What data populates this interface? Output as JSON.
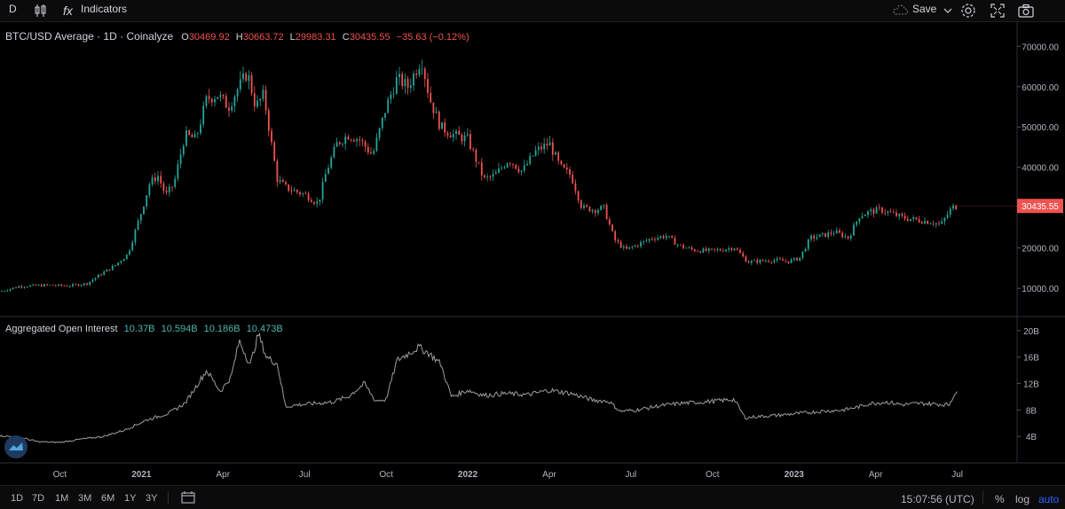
{
  "toolbar": {
    "interval": "D",
    "indicators_label": "Indicators",
    "save_label": "Save"
  },
  "price_legend": {
    "symbol": "BTC/USD Average · 1D · Coinalyze",
    "o_label": "O",
    "o_value": "30469.92",
    "h_label": "H",
    "h_value": "30663.72",
    "l_label": "L",
    "l_value": "29983.31",
    "c_label": "C",
    "c_value": "30435.55",
    "change": "−35.63 (−0.12%)"
  },
  "oi_legend": {
    "title": "Aggregated Open Interest",
    "v1": "10.37B",
    "v2": "10.594B",
    "v3": "10.186B",
    "v4": "10.473B"
  },
  "bottom_bar": {
    "ranges": [
      "1D",
      "7D",
      "1M",
      "3M",
      "6M",
      "1Y",
      "3Y"
    ],
    "time": "15:07:56 (UTC)",
    "percent": "%",
    "log": "log",
    "auto": "auto"
  },
  "colors": {
    "up": "#26a69a",
    "down": "#ef5350",
    "oi": "#9e9e9e",
    "accent": "#2962ff"
  },
  "chart_data": [
    {
      "type": "candlestick",
      "title": "BTC/USD Average · 1D · Coinalyze",
      "y_ticks": [
        "70000.00",
        "60000.00",
        "50000.00",
        "40000.00",
        "30000.00",
        "20000.00",
        "10000.00"
      ],
      "y_range": [
        3000,
        76000
      ],
      "last_price_label": "30435.55",
      "last_price": 30435.55,
      "x_ticks": [
        "Oct",
        "2021",
        "Apr",
        "Jul",
        "Oct",
        "2022",
        "Apr",
        "Jul",
        "Oct",
        "2023",
        "Apr",
        "Jul"
      ],
      "x_tick_months": [
        0,
        3,
        6,
        9,
        12,
        15,
        18,
        21,
        24,
        27,
        30,
        33
      ],
      "month_range": [
        -2.2,
        35.2
      ],
      "series_points": [
        [
          -2.2,
          9200
        ],
        [
          -1.5,
          10500
        ],
        [
          -0.5,
          10800
        ],
        [
          0.3,
          10600
        ],
        [
          1.0,
          11200
        ],
        [
          1.5,
          13500
        ],
        [
          2.0,
          15500
        ],
        [
          2.5,
          18500
        ],
        [
          3.0,
          29000
        ],
        [
          3.3,
          36000
        ],
        [
          3.6,
          38000
        ],
        [
          3.9,
          33000
        ],
        [
          4.2,
          36000
        ],
        [
          4.6,
          48000
        ],
        [
          5.0,
          47000
        ],
        [
          5.4,
          57000
        ],
        [
          5.8,
          58000
        ],
        [
          6.2,
          55000
        ],
        [
          6.5,
          59000
        ],
        [
          6.9,
          63500
        ],
        [
          7.2,
          55000
        ],
        [
          7.5,
          58000
        ],
        [
          7.8,
          45000
        ],
        [
          8.0,
          37000
        ],
        [
          8.3,
          35000
        ],
        [
          8.7,
          34000
        ],
        [
          9.1,
          33000
        ],
        [
          9.5,
          31000
        ],
        [
          9.8,
          39000
        ],
        [
          10.2,
          46000
        ],
        [
          10.6,
          48000
        ],
        [
          11.0,
          47000
        ],
        [
          11.5,
          43000
        ],
        [
          12.0,
          55000
        ],
        [
          12.4,
          62000
        ],
        [
          12.8,
          60000
        ],
        [
          13.3,
          67000
        ],
        [
          13.6,
          57000
        ],
        [
          14.0,
          50000
        ],
        [
          14.5,
          48000
        ],
        [
          15.0,
          47000
        ],
        [
          15.3,
          42000
        ],
        [
          15.6,
          37000
        ],
        [
          16.0,
          38000
        ],
        [
          16.5,
          42000
        ],
        [
          17.0,
          39000
        ],
        [
          17.5,
          44000
        ],
        [
          18.0,
          46000
        ],
        [
          18.4,
          40000
        ],
        [
          18.8,
          38000
        ],
        [
          19.2,
          30000
        ],
        [
          19.7,
          29500
        ],
        [
          20.0,
          30000
        ],
        [
          20.4,
          22000
        ],
        [
          20.8,
          19500
        ],
        [
          21.3,
          21000
        ],
        [
          21.8,
          22500
        ],
        [
          22.3,
          23000
        ],
        [
          22.8,
          20500
        ],
        [
          23.3,
          19500
        ],
        [
          23.8,
          19300
        ],
        [
          24.3,
          19500
        ],
        [
          24.8,
          20200
        ],
        [
          25.3,
          16500
        ],
        [
          25.8,
          16800
        ],
        [
          26.3,
          17000
        ],
        [
          26.8,
          16700
        ],
        [
          27.2,
          17500
        ],
        [
          27.6,
          22500
        ],
        [
          28.0,
          23000
        ],
        [
          28.5,
          24000
        ],
        [
          29.0,
          22500
        ],
        [
          29.4,
          28000
        ],
        [
          29.8,
          29000
        ],
        [
          30.2,
          29500
        ],
        [
          30.6,
          28500
        ],
        [
          31.0,
          27500
        ],
        [
          31.5,
          27000
        ],
        [
          32.0,
          26500
        ],
        [
          32.4,
          25800
        ],
        [
          32.8,
          30000
        ],
        [
          33.0,
          30435.55
        ]
      ]
    },
    {
      "type": "line",
      "title": "Aggregated Open Interest",
      "y_ticks": [
        "20B",
        "16B",
        "12B",
        "8B",
        "4B"
      ],
      "y_range": [
        0,
        22
      ],
      "units": "billion USD",
      "series_points": [
        [
          -2.2,
          4.1
        ],
        [
          -1.5,
          3.9
        ],
        [
          -0.8,
          3.2
        ],
        [
          0.0,
          3.1
        ],
        [
          0.8,
          3.6
        ],
        [
          1.6,
          4.0
        ],
        [
          2.4,
          5.0
        ],
        [
          3.2,
          6.5
        ],
        [
          4.0,
          7.5
        ],
        [
          4.6,
          9.0
        ],
        [
          5.0,
          11.5
        ],
        [
          5.4,
          14.0
        ],
        [
          5.9,
          10.8
        ],
        [
          6.3,
          13.0
        ],
        [
          6.6,
          18.5
        ],
        [
          7.0,
          14.8
        ],
        [
          7.3,
          19.5
        ],
        [
          7.6,
          16.0
        ],
        [
          8.0,
          15.0
        ],
        [
          8.3,
          8.5
        ],
        [
          8.8,
          8.8
        ],
        [
          9.4,
          9.0
        ],
        [
          10.0,
          9.2
        ],
        [
          10.6,
          10.0
        ],
        [
          11.2,
          12.0
        ],
        [
          11.6,
          9.4
        ],
        [
          12.0,
          9.6
        ],
        [
          12.4,
          15.5
        ],
        [
          12.8,
          16.5
        ],
        [
          13.2,
          17.5
        ],
        [
          13.6,
          16.5
        ],
        [
          14.0,
          15.0
        ],
        [
          14.4,
          10.0
        ],
        [
          15.0,
          11.0
        ],
        [
          15.6,
          10.2
        ],
        [
          16.4,
          10.5
        ],
        [
          17.2,
          10.3
        ],
        [
          18.0,
          11.0
        ],
        [
          18.8,
          10.5
        ],
        [
          19.6,
          9.5
        ],
        [
          20.2,
          9.3
        ],
        [
          20.6,
          7.8
        ],
        [
          21.2,
          8.0
        ],
        [
          22.0,
          8.6
        ],
        [
          22.8,
          9.0
        ],
        [
          23.6,
          9.2
        ],
        [
          24.2,
          9.4
        ],
        [
          24.8,
          9.6
        ],
        [
          25.2,
          6.8
        ],
        [
          25.6,
          7.0
        ],
        [
          26.4,
          7.2
        ],
        [
          27.2,
          7.5
        ],
        [
          28.0,
          7.8
        ],
        [
          28.8,
          8.0
        ],
        [
          29.4,
          8.5
        ],
        [
          29.8,
          9.0
        ],
        [
          30.4,
          9.2
        ],
        [
          31.0,
          8.8
        ],
        [
          31.6,
          9.0
        ],
        [
          32.2,
          8.9
        ],
        [
          32.7,
          8.8
        ],
        [
          32.9,
          10.5
        ],
        [
          33.0,
          10.47
        ]
      ]
    }
  ]
}
